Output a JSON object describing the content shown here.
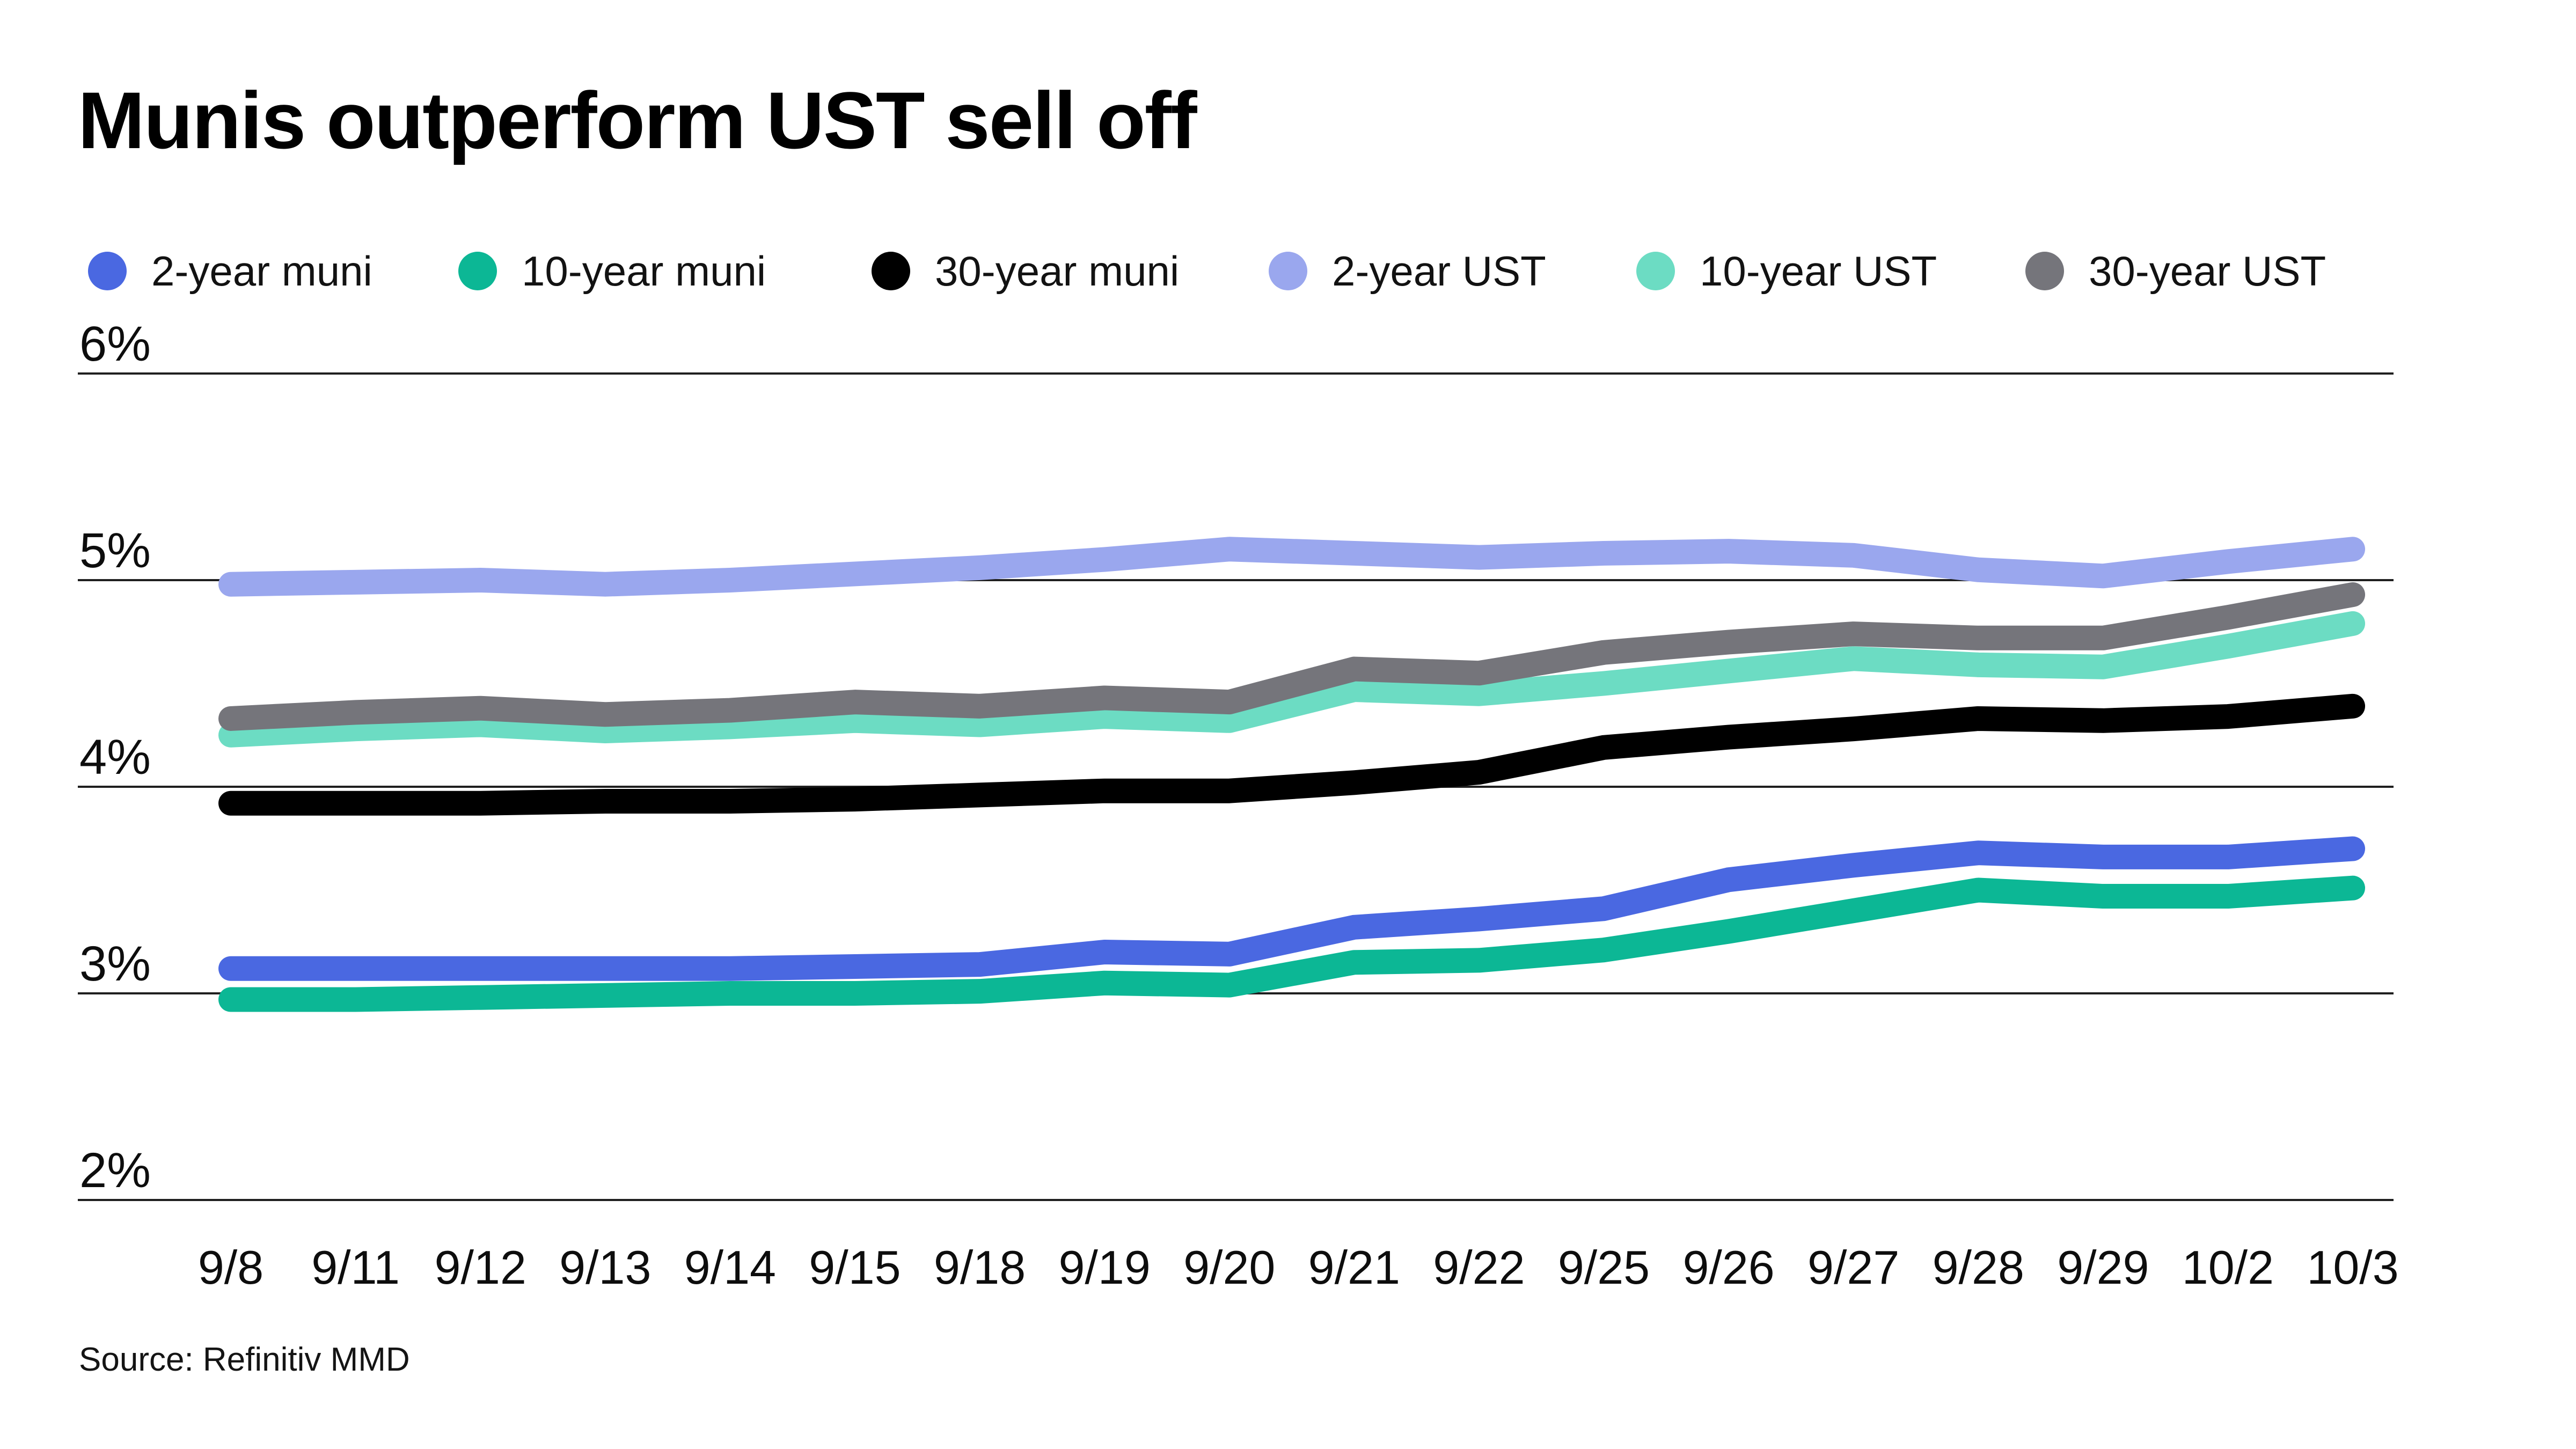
{
  "title": "Munis outperform UST sell off",
  "source": "Source: Refinitiv MMD",
  "colors": {
    "muni_2yr": "#4a68e1",
    "muni_10yr": "#0cb795",
    "muni_30yr": "#000000",
    "ust_2yr": "#9aa7ee",
    "ust_10yr": "#6cdcc3",
    "ust_30yr": "#75757b",
    "gridline": "#1f1f1f",
    "text": "#0d0d0d",
    "background": "#ffffff"
  },
  "chart_data": {
    "type": "line",
    "title": "Munis outperform UST sell off",
    "xlabel": "",
    "ylabel": "",
    "ylim": [
      2,
      6
    ],
    "grid": "horizontal",
    "legend_position": "top",
    "categories": [
      "9/8",
      "9/11",
      "9/12",
      "9/13",
      "9/14",
      "9/15",
      "9/18",
      "9/19",
      "9/20",
      "9/21",
      "9/22",
      "9/25",
      "9/26",
      "9/27",
      "9/28",
      "9/29",
      "10/2",
      "10/3"
    ],
    "yticks": [
      {
        "value": 6,
        "label": "6%"
      },
      {
        "value": 5,
        "label": "5%"
      },
      {
        "value": 4,
        "label": "4%"
      },
      {
        "value": 3,
        "label": "3%"
      },
      {
        "value": 2,
        "label": "2%"
      }
    ],
    "series": [
      {
        "name": "2-year muni",
        "color_key": "muni_2yr",
        "values": [
          3.12,
          3.12,
          3.12,
          3.12,
          3.12,
          3.13,
          3.14,
          3.2,
          3.19,
          3.32,
          3.36,
          3.41,
          3.55,
          3.62,
          3.68,
          3.66,
          3.66,
          3.7
        ]
      },
      {
        "name": "10-year muni",
        "color_key": "muni_10yr",
        "values": [
          2.97,
          2.97,
          2.98,
          2.99,
          3.0,
          3.0,
          3.01,
          3.05,
          3.04,
          3.15,
          3.16,
          3.21,
          3.3,
          3.4,
          3.5,
          3.47,
          3.47,
          3.51
        ]
      },
      {
        "name": "30-year muni",
        "color_key": "muni_30yr",
        "values": [
          3.92,
          3.92,
          3.92,
          3.93,
          3.93,
          3.94,
          3.96,
          3.98,
          3.98,
          4.02,
          4.07,
          4.19,
          4.24,
          4.28,
          4.33,
          4.32,
          4.34,
          4.39
        ]
      },
      {
        "name": "2-year UST",
        "color_key": "ust_2yr",
        "values": [
          4.98,
          4.99,
          5.0,
          4.98,
          5.0,
          5.03,
          5.06,
          5.1,
          5.15,
          5.13,
          5.11,
          5.13,
          5.14,
          5.12,
          5.05,
          5.02,
          5.09,
          5.15
        ]
      },
      {
        "name": "10-year UST",
        "color_key": "ust_10yr",
        "values": [
          4.25,
          4.28,
          4.3,
          4.27,
          4.29,
          4.32,
          4.3,
          4.34,
          4.32,
          4.47,
          4.45,
          4.5,
          4.56,
          4.62,
          4.59,
          4.58,
          4.68,
          4.79
        ]
      },
      {
        "name": "30-year UST",
        "color_key": "ust_30yr",
        "values": [
          4.33,
          4.36,
          4.38,
          4.35,
          4.37,
          4.41,
          4.39,
          4.43,
          4.41,
          4.57,
          4.55,
          4.65,
          4.7,
          4.74,
          4.72,
          4.72,
          4.82,
          4.93
        ]
      }
    ]
  },
  "legend": {
    "items": [
      {
        "label": "2-year muni",
        "color_key": "muni_2yr"
      },
      {
        "label": "10-year muni",
        "color_key": "muni_10yr"
      },
      {
        "label": "30-year muni",
        "color_key": "muni_30yr"
      },
      {
        "label": "2-year UST",
        "color_key": "ust_2yr"
      },
      {
        "label": "10-year UST",
        "color_key": "ust_10yr"
      },
      {
        "label": "30-year UST",
        "color_key": "ust_30yr"
      }
    ]
  }
}
